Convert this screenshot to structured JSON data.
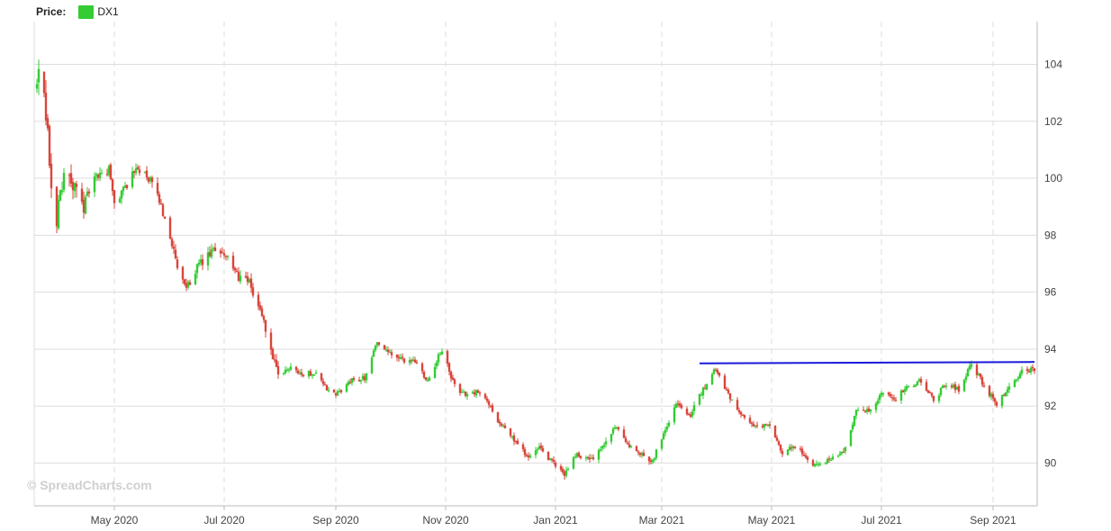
{
  "legend": {
    "label": "Price:",
    "series_name": "DX1",
    "color": "#33cc33"
  },
  "watermark": "© SpreadCharts.com",
  "colors": {
    "up": "#33cc33",
    "down": "#d9453b",
    "trendline": "#1a1adb",
    "grid": "#dddddd",
    "axis": "#bbbbbb"
  },
  "chart_data": {
    "type": "candlestick",
    "series_name": "DX1",
    "x_range": [
      "2020-03-19",
      "2021-09-24"
    ],
    "ylim": [
      88.5,
      105.5
    ],
    "y_ticks": [
      90,
      92,
      94,
      96,
      98,
      100,
      102,
      104
    ],
    "x_ticks": [
      {
        "date": "2020-05-01",
        "label": "May 2020"
      },
      {
        "date": "2020-07-01",
        "label": "Jul 2020"
      },
      {
        "date": "2020-09-01",
        "label": "Sep 2020"
      },
      {
        "date": "2020-11-01",
        "label": "Nov 2020"
      },
      {
        "date": "2021-01-01",
        "label": "Jan 2021"
      },
      {
        "date": "2021-03-01",
        "label": "Mar 2021"
      },
      {
        "date": "2021-05-01",
        "label": "May 2021"
      },
      {
        "date": "2021-07-01",
        "label": "Jul 2021"
      },
      {
        "date": "2021-09-01",
        "label": "Sep 2021"
      }
    ],
    "grid": true,
    "close_waypoints": [
      [
        "2020-03-19",
        103.2
      ],
      [
        "2020-03-20",
        103.6
      ],
      [
        "2020-03-23",
        102.7
      ],
      [
        "2020-03-25",
        101.5
      ],
      [
        "2020-03-27",
        99.5
      ],
      [
        "2020-03-30",
        98.6
      ],
      [
        "2020-04-03",
        100.3
      ],
      [
        "2020-04-09",
        99.6
      ],
      [
        "2020-04-14",
        99.1
      ],
      [
        "2020-04-20",
        100.0
      ],
      [
        "2020-04-28",
        100.3
      ],
      [
        "2020-05-01",
        99.1
      ],
      [
        "2020-05-08",
        99.8
      ],
      [
        "2020-05-14",
        100.4
      ],
      [
        "2020-05-22",
        99.8
      ],
      [
        "2020-05-26",
        99.2
      ],
      [
        "2020-06-01",
        98.0
      ],
      [
        "2020-06-05",
        96.8
      ],
      [
        "2020-06-10",
        96.1
      ],
      [
        "2020-06-15",
        96.8
      ],
      [
        "2020-06-26",
        97.5
      ],
      [
        "2020-07-01",
        97.4
      ],
      [
        "2020-07-08",
        96.6
      ],
      [
        "2020-07-15",
        96.3
      ],
      [
        "2020-07-22",
        95.2
      ],
      [
        "2020-07-28",
        93.7
      ],
      [
        "2020-07-31",
        93.0
      ],
      [
        "2020-08-07",
        93.4
      ],
      [
        "2020-08-14",
        93.1
      ],
      [
        "2020-08-21",
        93.2
      ],
      [
        "2020-08-28",
        92.5
      ],
      [
        "2020-09-01",
        92.4
      ],
      [
        "2020-09-10",
        92.9
      ],
      [
        "2020-09-17",
        93.0
      ],
      [
        "2020-09-24",
        94.3
      ],
      [
        "2020-09-29",
        93.9
      ],
      [
        "2020-10-08",
        93.6
      ],
      [
        "2020-10-15",
        93.6
      ],
      [
        "2020-10-22",
        92.9
      ],
      [
        "2020-10-30",
        94.0
      ],
      [
        "2020-11-04",
        93.0
      ],
      [
        "2020-11-09",
        92.4
      ],
      [
        "2020-11-18",
        92.5
      ],
      [
        "2020-11-24",
        92.2
      ],
      [
        "2020-12-01",
        91.4
      ],
      [
        "2020-12-08",
        90.9
      ],
      [
        "2020-12-17",
        90.2
      ],
      [
        "2020-12-23",
        90.5
      ],
      [
        "2021-01-06",
        89.6
      ],
      [
        "2021-01-12",
        90.3
      ],
      [
        "2021-01-22",
        90.1
      ],
      [
        "2021-02-04",
        91.3
      ],
      [
        "2021-02-12",
        90.5
      ],
      [
        "2021-02-24",
        90.1
      ],
      [
        "2021-03-01",
        90.9
      ],
      [
        "2021-03-09",
        92.1
      ],
      [
        "2021-03-17",
        91.7
      ],
      [
        "2021-03-25",
        92.7
      ],
      [
        "2021-03-31",
        93.3
      ],
      [
        "2021-04-09",
        92.2
      ],
      [
        "2021-04-20",
        91.3
      ],
      [
        "2021-04-30",
        91.3
      ],
      [
        "2021-05-07",
        90.3
      ],
      [
        "2021-05-14",
        90.6
      ],
      [
        "2021-05-25",
        89.9
      ],
      [
        "2021-06-04",
        90.2
      ],
      [
        "2021-06-11",
        90.5
      ],
      [
        "2021-06-17",
        91.9
      ],
      [
        "2021-06-25",
        91.8
      ],
      [
        "2021-07-01",
        92.4
      ],
      [
        "2021-07-09",
        92.3
      ],
      [
        "2021-07-16",
        92.7
      ],
      [
        "2021-07-23",
        92.9
      ],
      [
        "2021-07-30",
        92.2
      ],
      [
        "2021-08-06",
        92.8
      ],
      [
        "2021-08-13",
        92.6
      ],
      [
        "2021-08-20",
        93.5
      ],
      [
        "2021-08-27",
        92.7
      ],
      [
        "2021-09-03",
        92.1
      ],
      [
        "2021-09-10",
        92.6
      ],
      [
        "2021-09-17",
        93.2
      ],
      [
        "2021-09-24",
        93.3
      ]
    ],
    "trendline": {
      "start": [
        "2021-03-22",
        93.5
      ],
      "end": [
        "2021-09-24",
        93.55
      ]
    }
  }
}
